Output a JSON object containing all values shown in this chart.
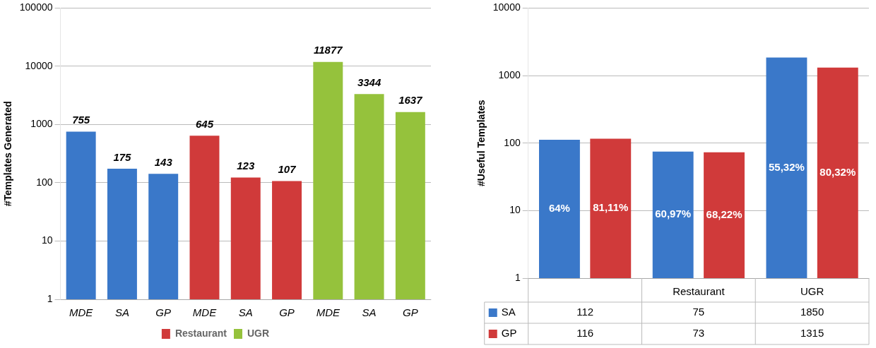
{
  "chart_data": [
    {
      "type": "bar",
      "ylabel": "#Templates Generated",
      "categories": [
        "MDE",
        "SA",
        "GP",
        "MDE",
        "SA",
        "GP",
        "MDE",
        "SA",
        "GP"
      ],
      "series": [
        {
          "color": "#3a78c9",
          "values": [
            755,
            175,
            143,
            null,
            null,
            null,
            null,
            null,
            null
          ]
        },
        {
          "name": "Restaurant",
          "color": "#d03a3a",
          "values": [
            null,
            null,
            null,
            645,
            123,
            107,
            null,
            null,
            null
          ]
        },
        {
          "name": "UGR",
          "color": "#95c23c",
          "values": [
            null,
            null,
            null,
            null,
            null,
            null,
            11877,
            3344,
            1637
          ]
        }
      ],
      "log": true,
      "ylim": [
        1,
        100000
      ],
      "yticks": [
        1,
        10,
        100,
        1000,
        10000,
        100000
      ],
      "grid": "y",
      "legend": "bottom",
      "data_labels": true
    },
    {
      "type": "bar",
      "ylabel": "#Useful Templates",
      "categories": [
        null,
        "Restaurant",
        "UGR"
      ],
      "series": [
        {
          "name": "SA",
          "color": "#3a78c9",
          "values": [
            112,
            75,
            1850
          ],
          "value_labels": [
            "112",
            "75",
            "1850"
          ]
        },
        {
          "name": "GP",
          "color": "#d03a3a",
          "values": [
            116,
            73,
            1315
          ],
          "value_labels": [
            "116",
            "73",
            "1315"
          ]
        }
      ],
      "annotations": [
        "64%",
        "60,97%",
        "55,32%",
        "81,11%",
        "68,22%",
        "80,32%"
      ],
      "log": true,
      "ylim": [
        1,
        10000
      ],
      "yticks": [
        1,
        10,
        100,
        1000,
        10000
      ],
      "grid": "y",
      "legend": "bottom"
    }
  ]
}
